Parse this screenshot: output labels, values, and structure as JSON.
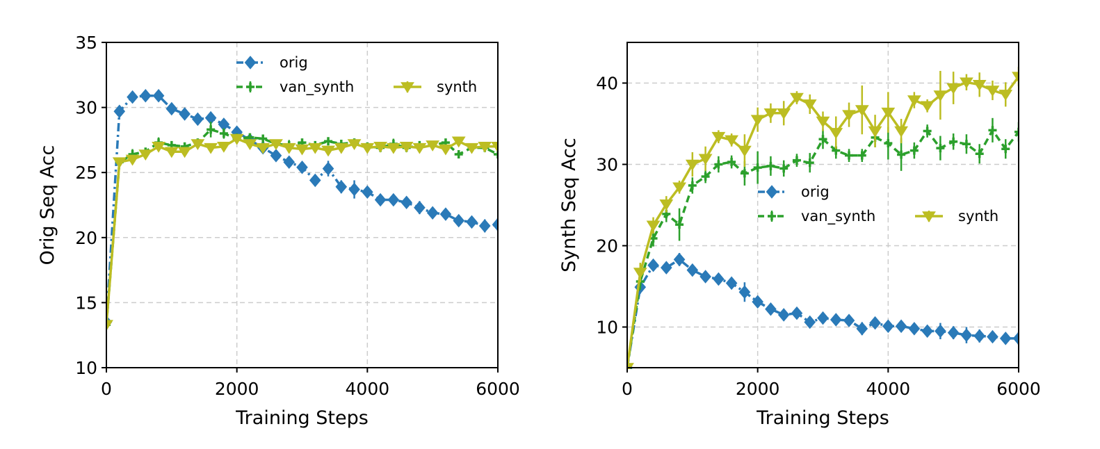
{
  "colors": {
    "orig": "#2a7ab8",
    "van_synth": "#2ca02c",
    "synth": "#bcbd22"
  },
  "chart_data": [
    {
      "type": "line",
      "xlabel": "Training Steps",
      "ylabel": "Orig Seq Acc",
      "xlim": [
        0,
        6000
      ],
      "ylim": [
        10,
        35
      ],
      "xticks": [
        0,
        2000,
        4000,
        6000
      ],
      "yticks": [
        10,
        15,
        20,
        25,
        30,
        35
      ],
      "grid": true,
      "legend_position": "top-center",
      "x": [
        0,
        200,
        400,
        600,
        800,
        1000,
        1200,
        1400,
        1600,
        1800,
        2000,
        2200,
        2400,
        2600,
        2800,
        3000,
        3200,
        3400,
        3600,
        3800,
        4000,
        4200,
        4400,
        4600,
        4800,
        5000,
        5200,
        5400,
        5600,
        5800,
        6000
      ],
      "series": [
        {
          "name": "orig",
          "key": "orig",
          "style": "dashdot",
          "marker": "diamond",
          "values": [
            13.5,
            29.7,
            30.8,
            30.9,
            30.9,
            29.9,
            29.5,
            29.1,
            29.2,
            28.7,
            28.1,
            27.5,
            26.9,
            26.3,
            25.8,
            25.4,
            24.4,
            25.3,
            23.9,
            23.7,
            23.5,
            22.9,
            22.9,
            22.7,
            22.3,
            21.9,
            21.8,
            21.3,
            21.2,
            20.9,
            21.0
          ],
          "errors": [
            0.2,
            0.4,
            0.4,
            0.3,
            0.4,
            0.4,
            0.3,
            0.3,
            0.4,
            0.3,
            0.4,
            0.3,
            0.3,
            0.4,
            0.3,
            0.3,
            0.4,
            0.6,
            0.5,
            0.7,
            0.4,
            0.3,
            0.3,
            0.4,
            0.5,
            0.3,
            0.3,
            0.3,
            0.3,
            0.5,
            0.5
          ]
        },
        {
          "name": "van_synth",
          "key": "van_synth",
          "style": "dashed",
          "marker": "plus",
          "values": [
            13.3,
            25.8,
            26.4,
            26.6,
            27.3,
            27.1,
            27.0,
            27.3,
            28.3,
            28.0,
            27.6,
            27.7,
            27.6,
            27.2,
            27.1,
            27.3,
            27.1,
            27.4,
            27.2,
            27.3,
            27.0,
            26.9,
            27.2,
            26.9,
            27.1,
            27.1,
            27.3,
            26.4,
            26.9,
            26.9,
            26.4
          ],
          "errors": [
            0.2,
            0.3,
            0.4,
            0.3,
            0.4,
            0.3,
            0.3,
            0.3,
            0.6,
            0.4,
            0.4,
            0.3,
            0.3,
            0.3,
            0.4,
            0.3,
            0.3,
            0.3,
            0.3,
            0.3,
            0.3,
            0.3,
            0.4,
            0.3,
            0.3,
            0.3,
            0.3,
            0.3,
            0.3,
            0.3,
            0.3
          ]
        },
        {
          "name": "synth",
          "key": "synth",
          "style": "solid",
          "marker": "triangle_down",
          "values": [
            13.3,
            25.8,
            26.0,
            26.4,
            27.0,
            26.6,
            26.6,
            27.2,
            26.9,
            27.0,
            27.6,
            27.2,
            26.9,
            27.2,
            26.9,
            26.8,
            26.9,
            26.7,
            26.9,
            27.2,
            26.9,
            27.0,
            26.9,
            27.0,
            26.9,
            27.1,
            26.8,
            27.4,
            26.9,
            27.0,
            27.0
          ],
          "errors": [
            0.2,
            0.3,
            0.3,
            0.3,
            0.3,
            0.3,
            0.3,
            0.3,
            0.3,
            0.3,
            0.3,
            0.3,
            0.3,
            0.3,
            0.3,
            0.3,
            0.3,
            0.3,
            0.3,
            0.3,
            0.3,
            0.3,
            0.3,
            0.3,
            0.3,
            0.3,
            0.3,
            0.3,
            0.3,
            0.3,
            0.3
          ]
        }
      ]
    },
    {
      "type": "line",
      "xlabel": "Training Steps",
      "ylabel": "Synth Seq Acc",
      "xlim": [
        0,
        6000
      ],
      "ylim": [
        5,
        45
      ],
      "xticks": [
        0,
        2000,
        4000,
        6000
      ],
      "yticks": [
        10,
        20,
        30,
        40
      ],
      "grid": true,
      "legend_position": "center-right",
      "x": [
        0,
        200,
        400,
        600,
        800,
        1000,
        1200,
        1400,
        1600,
        1800,
        2000,
        2200,
        2400,
        2600,
        2800,
        3000,
        3200,
        3400,
        3600,
        3800,
        4000,
        4200,
        4400,
        4600,
        4800,
        5000,
        5200,
        5400,
        5600,
        5800,
        6000
      ],
      "series": [
        {
          "name": "orig",
          "key": "orig",
          "style": "dashdot",
          "marker": "diamond",
          "values": [
            5.0,
            14.9,
            17.6,
            17.3,
            18.3,
            17.0,
            16.2,
            15.9,
            15.4,
            14.3,
            13.1,
            12.2,
            11.5,
            11.7,
            10.6,
            11.1,
            10.9,
            10.8,
            9.8,
            10.5,
            10.1,
            10.1,
            9.8,
            9.5,
            9.5,
            9.3,
            9.0,
            8.9,
            8.8,
            8.6,
            8.6
          ],
          "errors": [
            0.3,
            0.8,
            0.6,
            0.5,
            0.8,
            0.6,
            0.5,
            0.5,
            0.5,
            1.2,
            0.6,
            0.6,
            0.5,
            0.5,
            0.6,
            0.5,
            0.5,
            0.5,
            0.8,
            0.6,
            0.5,
            0.5,
            0.5,
            0.5,
            1.0,
            0.8,
            1.0,
            0.8,
            0.6,
            0.6,
            0.8
          ]
        },
        {
          "name": "van_synth",
          "key": "van_synth",
          "style": "dashed",
          "marker": "plus",
          "values": [
            5.0,
            15.6,
            20.9,
            23.9,
            22.6,
            27.4,
            28.5,
            30.0,
            30.3,
            28.9,
            29.6,
            29.8,
            29.5,
            30.5,
            30.2,
            33.1,
            31.7,
            31.1,
            31.1,
            33.3,
            32.6,
            31.2,
            31.7,
            34.1,
            32.0,
            32.8,
            32.5,
            31.3,
            34.2,
            31.9,
            34.0
          ],
          "errors": [
            0.3,
            1.0,
            1.0,
            1.0,
            2.0,
            1.0,
            0.8,
            1.0,
            0.8,
            1.5,
            2.0,
            1.2,
            1.0,
            0.8,
            1.2,
            1.2,
            1.0,
            0.8,
            0.8,
            1.2,
            2.0,
            2.0,
            1.0,
            0.8,
            1.5,
            1.0,
            1.2,
            1.2,
            1.5,
            1.2,
            1.2
          ]
        },
        {
          "name": "synth",
          "key": "synth",
          "style": "solid",
          "marker": "triangle_down",
          "values": [
            5.0,
            16.7,
            22.5,
            25.1,
            27.2,
            30.0,
            30.7,
            33.4,
            33.0,
            31.7,
            35.5,
            36.3,
            36.3,
            38.2,
            37.4,
            35.3,
            33.9,
            36.1,
            36.7,
            34.1,
            36.4,
            34.1,
            37.9,
            37.2,
            38.5,
            39.4,
            40.1,
            39.8,
            39.1,
            38.6,
            40.8
          ],
          "errors": [
            0.3,
            1.2,
            1.0,
            1.0,
            0.8,
            1.5,
            1.5,
            0.8,
            0.8,
            2.0,
            1.5,
            1.2,
            1.5,
            0.8,
            1.2,
            1.2,
            2.0,
            1.5,
            3.0,
            2.0,
            2.5,
            1.5,
            1.0,
            0.8,
            3.0,
            2.0,
            1.0,
            1.5,
            1.2,
            1.5,
            1.2
          ]
        }
      ]
    }
  ]
}
